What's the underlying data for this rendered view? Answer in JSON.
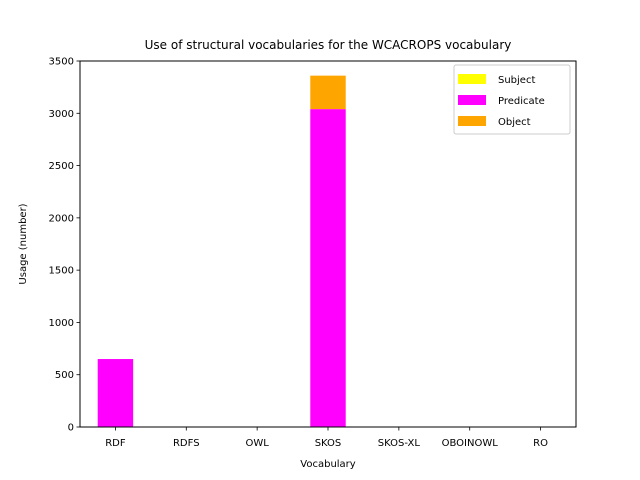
{
  "chart_data": {
    "type": "bar",
    "stacked": true,
    "title": "Use of structural vocabularies for the WCACROPS vocabulary",
    "xlabel": "Vocabulary",
    "ylabel": "Usage (number)",
    "categories": [
      "RDF",
      "RDFS",
      "OWL",
      "SKOS",
      "SKOS-XL",
      "OBOINOWL",
      "RO"
    ],
    "ylim": [
      0,
      3500
    ],
    "yticks": [
      0,
      500,
      1000,
      1500,
      2000,
      2500,
      3000,
      3500
    ],
    "grid": false,
    "legend_position": "top-right",
    "series": [
      {
        "name": "Subject",
        "color": "#ffff00",
        "values": [
          0,
          0,
          0,
          0,
          0,
          0,
          0
        ]
      },
      {
        "name": "Predicate",
        "color": "#ff00ff",
        "values": [
          650,
          0,
          0,
          3040,
          0,
          0,
          0
        ]
      },
      {
        "name": "Object",
        "color": "#ffa500",
        "values": [
          0,
          0,
          0,
          320,
          0,
          0,
          0
        ]
      }
    ]
  }
}
